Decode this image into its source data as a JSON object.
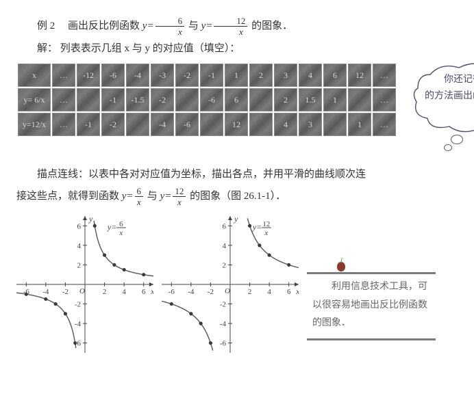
{
  "example": {
    "label": "例 2",
    "text_a": "画出反比例函数 ",
    "fn1_num": "6",
    "fn1_den": "x",
    "text_b": " 与 ",
    "fn2_num": "12",
    "fn2_den": "x",
    "text_c": " 的图象．"
  },
  "solution_intro": {
    "label": "解：",
    "text": "列表表示几组 x 与 y 的对应值（填空）："
  },
  "table": {
    "row_x": [
      "x",
      "…",
      "-12",
      "-6",
      "-4",
      "-3",
      "-2",
      "-1",
      "1",
      "2",
      "3",
      "4",
      "6",
      "12",
      "…"
    ],
    "row_y6": [
      "y= 6/x",
      "…",
      "",
      "-1",
      "-1.5",
      "-2",
      "",
      "-6",
      "6",
      "",
      "2",
      "1.5",
      "1",
      "",
      "…"
    ],
    "row_y12": [
      "y=12/x",
      "…",
      "-1",
      "-2",
      "",
      "-4",
      "-6",
      "",
      "12",
      "",
      "4",
      "3",
      "",
      "1",
      "…"
    ]
  },
  "bubble": "　　你还记得如何用 “描点” 的方法画出函数的图象吗？",
  "paragraph": {
    "a": "描点连线：以表中各对对应值为坐标，描出各点，并用平滑的曲线顺次连",
    "b": "接这些点，就得到函数 ",
    "c": " 与 ",
    "d": " 的图象（图 26.1-1）．"
  },
  "chart1": {
    "type": "line",
    "title_prefix": "y=",
    "title_num": "6",
    "title_den": "x",
    "xlim": [
      -7,
      7
    ],
    "ylim": [
      -7,
      7
    ],
    "ticks_x": [
      -6,
      -4,
      -2,
      2,
      4,
      6
    ],
    "ticks_y": [
      -6,
      -4,
      -2,
      2,
      4,
      6
    ],
    "axis_color": "#444",
    "curve_color": "#555",
    "point_color": "#3a3a3a",
    "points_pos": [
      [
        1,
        6
      ],
      [
        2,
        3
      ],
      [
        3,
        2
      ],
      [
        4,
        1.5
      ],
      [
        6,
        1
      ]
    ],
    "points_neg": [
      [
        -1,
        -6
      ],
      [
        -2,
        -3
      ],
      [
        -3,
        -2
      ],
      [
        -4,
        -1.5
      ],
      [
        -6,
        -1
      ]
    ]
  },
  "chart2": {
    "type": "line",
    "title_prefix": "y=",
    "title_num": "12",
    "title_den": "x",
    "xlim": [
      -7,
      7
    ],
    "ylim": [
      -7,
      7
    ],
    "ticks_x": [
      -6,
      -4,
      -2,
      2,
      4,
      6
    ],
    "ticks_y": [
      -6,
      -4,
      -2,
      2,
      4,
      6
    ],
    "axis_color": "#444",
    "curve_color": "#555",
    "point_color": "#3a3a3a",
    "points_pos": [
      [
        2,
        6
      ],
      [
        3,
        4
      ],
      [
        4,
        3
      ],
      [
        6,
        2
      ]
    ],
    "points_neg": [
      [
        -2,
        -6
      ],
      [
        -3,
        -4
      ],
      [
        -4,
        -3
      ],
      [
        -6,
        -2
      ]
    ]
  },
  "note": "　　利用信息技术工具，可以很容易地画出反比例函数的图象．",
  "glyphs": {
    "y_eq": "y=",
    "x": "x",
    "y": "y",
    "O": "O"
  }
}
